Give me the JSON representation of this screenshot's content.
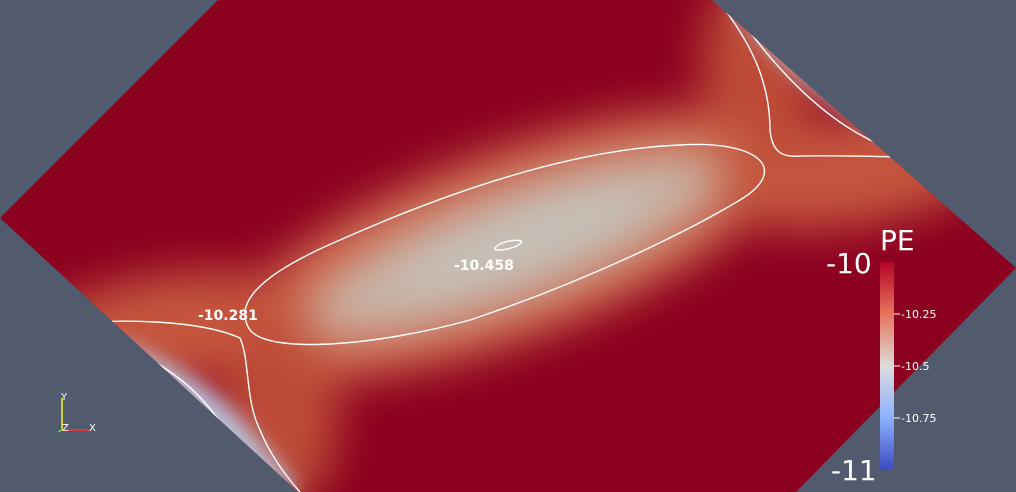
{
  "colorbar": {
    "title": "PE",
    "max_label": "-10",
    "min_label": "-11",
    "ticks": [
      "-10.25",
      "-10.5",
      "-10.75"
    ]
  },
  "contour_labels": {
    "outer": "-10.281",
    "inner": "-10.458"
  },
  "orientation_axes": {
    "x_label": "X",
    "y_label": "Y",
    "z_label": "Z"
  },
  "colors": {
    "background": "#525a6e",
    "high": "#8c0020",
    "mid": "#c9c1b8",
    "low": "#3a4ca6"
  }
}
